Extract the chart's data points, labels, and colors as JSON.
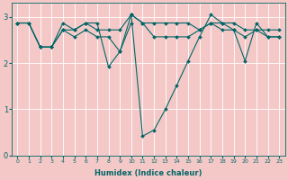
{
  "xlabel": "Humidex (Indice chaleur)",
  "ylabel": "",
  "bg_color": "#f5c8c8",
  "plot_bg_color": "#f5c8c8",
  "line_color": "#006666",
  "grid_color": "#ffffff",
  "xlim": [
    -0.5,
    23.5
  ],
  "ylim": [
    0,
    3.3
  ],
  "yticks": [
    0,
    1,
    2,
    3
  ],
  "xticks": [
    0,
    1,
    2,
    3,
    4,
    5,
    6,
    7,
    8,
    9,
    10,
    11,
    12,
    13,
    14,
    15,
    16,
    17,
    18,
    19,
    20,
    21,
    22,
    23
  ],
  "series": [
    {
      "x": [
        0,
        1,
        2,
        3,
        4,
        5,
        6,
        7,
        8,
        9,
        10,
        11,
        12,
        13,
        14,
        15,
        16,
        17,
        18,
        19,
        20,
        21,
        22,
        23
      ],
      "y": [
        2.87,
        2.87,
        2.35,
        2.35,
        2.87,
        2.72,
        2.87,
        2.72,
        2.72,
        2.72,
        3.05,
        2.87,
        2.87,
        2.87,
        2.87,
        2.87,
        2.72,
        2.87,
        2.87,
        2.87,
        2.72,
        2.72,
        2.72,
        2.72
      ]
    },
    {
      "x": [
        0,
        1,
        2,
        3,
        4,
        5,
        6,
        7,
        8,
        9,
        10,
        11,
        12,
        13,
        14,
        15,
        16,
        17,
        18,
        19,
        20,
        21,
        22,
        23
      ],
      "y": [
        2.87,
        2.87,
        2.35,
        2.35,
        2.72,
        2.57,
        2.72,
        2.57,
        2.57,
        2.25,
        3.05,
        2.87,
        2.57,
        2.57,
        2.57,
        2.57,
        2.72,
        2.87,
        2.72,
        2.72,
        2.57,
        2.72,
        2.57,
        2.57
      ]
    },
    {
      "x": [
        0,
        1,
        2,
        3,
        4,
        5,
        6,
        7,
        8,
        9,
        10,
        11,
        12,
        13,
        14,
        15,
        16,
        17,
        18,
        19,
        20,
        21,
        22,
        23
      ],
      "y": [
        2.87,
        2.87,
        2.35,
        2.35,
        2.72,
        2.72,
        2.87,
        2.87,
        1.92,
        2.25,
        2.87,
        null,
        null,
        null,
        null,
        null,
        null,
        null,
        null,
        null,
        null,
        null,
        null,
        null
      ]
    },
    {
      "x": [
        10,
        11,
        12,
        13,
        14,
        15,
        16,
        17,
        18,
        19,
        20,
        21,
        22,
        23
      ],
      "y": [
        3.05,
        0.42,
        0.55,
        1.0,
        1.52,
        2.05,
        2.57,
        3.05,
        2.87,
        2.72,
        2.05,
        2.87,
        2.57,
        2.57
      ]
    }
  ]
}
